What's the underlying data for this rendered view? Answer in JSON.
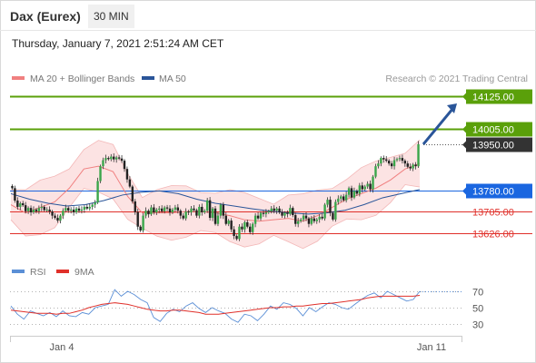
{
  "header": {
    "instrument": "Dax (Eurex)",
    "interval": "30 MIN",
    "datetime": "Thursday, January 7, 2021 2:51:24 AM CET"
  },
  "legend": {
    "ma20": {
      "label": "MA 20 + Bollinger Bands",
      "color": "#f08080"
    },
    "ma50": {
      "label": "MA 50",
      "color": "#2a5599"
    }
  },
  "credit": "Research © 2021 Trading Central",
  "levels": [
    {
      "value": 14125,
      "label": "14125.00",
      "kind": "resistance",
      "color": "#5aa00a"
    },
    {
      "value": 14005,
      "label": "14005.00",
      "kind": "resistance",
      "color": "#5aa00a"
    },
    {
      "value": 13950,
      "label": "13950.00",
      "kind": "last",
      "color": "#333333"
    },
    {
      "value": 13780,
      "label": "13780.00",
      "kind": "pivot",
      "color": "#1a66e0"
    },
    {
      "value": 13705,
      "label": "13705.00",
      "kind": "support",
      "color": "#e0302a"
    },
    {
      "value": 13626,
      "label": "13626.00",
      "kind": "support",
      "color": "#e0302a"
    }
  ],
  "rsi_legend": {
    "rsi": {
      "label": "RSI",
      "color": "#5b8fd6"
    },
    "ma9": {
      "label": "9MA",
      "color": "#e0302a"
    }
  },
  "rsi_ticks": [
    "70",
    "50",
    "30"
  ],
  "x_ticks": [
    "Jan 4",
    "Jan 11"
  ],
  "chart_data": [
    {
      "type": "candlestick",
      "ylim": [
        13560,
        14180
      ],
      "x_range": [
        "Jan 4",
        "Jan 11"
      ],
      "close_series": [
        13790,
        13745,
        13722,
        13735,
        13728,
        13706,
        13718,
        13702,
        13712,
        13706,
        13718,
        13722,
        13710,
        13712,
        13705,
        13690,
        13682,
        13672,
        13690,
        13708,
        13718,
        13708,
        13712,
        13702,
        13716,
        13708,
        13712,
        13722,
        13716,
        13722,
        13730,
        13738,
        13816,
        13870,
        13892,
        13900,
        13896,
        13905,
        13895,
        13902,
        13898,
        13890,
        13860,
        13822,
        13796,
        13742,
        13703,
        13650,
        13636,
        13690,
        13708,
        13695,
        13720,
        13702,
        13712,
        13716,
        13706,
        13720,
        13716,
        13702,
        13712,
        13720,
        13708,
        13690,
        13680,
        13705,
        13702,
        13716,
        13710,
        13690,
        13722,
        13702,
        13708,
        13746,
        13682,
        13716,
        13660,
        13690,
        13730,
        13690,
        13660,
        13672,
        13640,
        13616,
        13605,
        13650,
        13640,
        13666,
        13650,
        13630,
        13660,
        13690,
        13680,
        13700,
        13696,
        13702,
        13706,
        13716,
        13708,
        13716,
        13702,
        13690,
        13700,
        13696,
        13718,
        13692,
        13660,
        13670,
        13676,
        13690,
        13680,
        13660,
        13680,
        13670,
        13676,
        13686,
        13680,
        13730,
        13748,
        13700,
        13676,
        13740,
        13752,
        13760,
        13746,
        13766,
        13790,
        13756,
        13780,
        13770,
        13800,
        13786,
        13796,
        13806,
        13786,
        13832,
        13870,
        13880,
        13900,
        13895,
        13890,
        13880,
        13870,
        13892,
        13896,
        13900,
        13890,
        13880,
        13868,
        13862,
        13876,
        13870,
        13950
      ],
      "ma20_series": [
        13730,
        13700,
        13720,
        13740,
        13790,
        13860,
        13870,
        13850,
        13760,
        13700,
        13700,
        13700,
        13705,
        13705,
        13700,
        13690,
        13675,
        13670,
        13675,
        13680,
        13670,
        13690,
        13720,
        13750,
        13770,
        13790,
        13820,
        13860,
        13880
      ],
      "ma50_series": [
        13770,
        13750,
        13735,
        13725,
        13730,
        13745,
        13765,
        13775,
        13780,
        13770,
        13750,
        13735,
        13725,
        13715,
        13706,
        13700,
        13696,
        13700,
        13710,
        13730,
        13755,
        13770,
        13785
      ]
    },
    {
      "type": "line",
      "title": "RSI",
      "ylim": [
        20,
        80
      ],
      "yticks": [
        70,
        50,
        30
      ],
      "series": [
        {
          "name": "RSI",
          "values": [
            52,
            42,
            36,
            46,
            43,
            40,
            44,
            39,
            46,
            40,
            39,
            44,
            42,
            50,
            52,
            54,
            72,
            64,
            70,
            66,
            60,
            56,
            38,
            33,
            43,
            48,
            45,
            52,
            56,
            49,
            44,
            50,
            46,
            43,
            36,
            32,
            42,
            40,
            34,
            42,
            52,
            48,
            56,
            54,
            49,
            40,
            50,
            45,
            51,
            56,
            54,
            50,
            48,
            54,
            60,
            65,
            68,
            62,
            70,
            66,
            62,
            58,
            60,
            70
          ]
        },
        {
          "name": "9MA",
          "values": [
            47,
            46,
            45,
            44,
            43,
            43,
            43,
            42,
            43,
            43,
            45,
            47,
            50,
            52,
            54,
            55,
            56,
            55,
            54,
            52,
            50,
            48,
            47,
            46,
            46,
            47,
            47,
            46,
            45,
            44,
            42,
            42,
            42,
            43,
            44,
            45,
            46,
            47,
            48,
            49,
            50,
            50,
            51,
            51,
            52,
            52,
            53,
            54,
            55,
            55,
            56,
            57,
            58,
            59,
            60,
            62,
            63,
            64,
            64,
            64,
            64,
            64,
            64,
            65
          ]
        }
      ]
    }
  ]
}
